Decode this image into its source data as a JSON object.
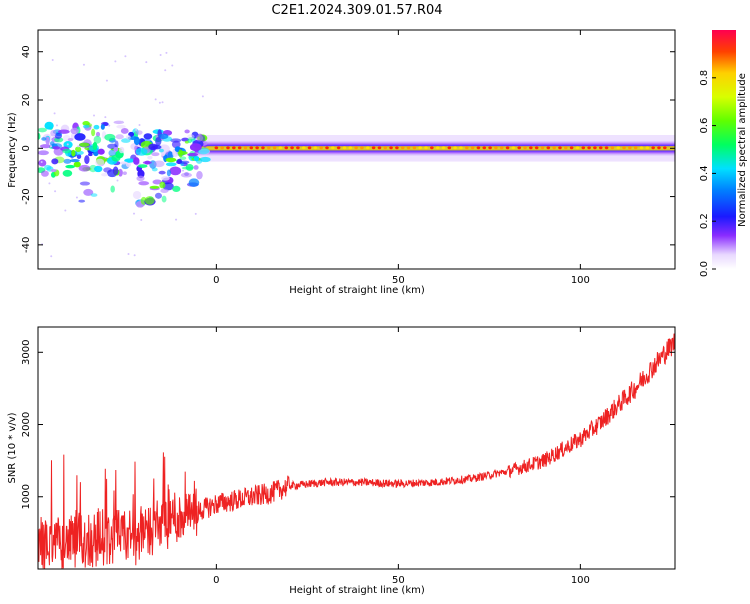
{
  "title": "C2E1.2024.309.01.57.R04",
  "chart_data": [
    {
      "type": "heatmap",
      "xlabel": "Height of straight line (km)",
      "ylabel": "Frequency (Hz)",
      "xlim": [
        -49,
        126
      ],
      "ylim": [
        -50,
        49
      ],
      "x_ticks": [
        "0",
        "50",
        "100"
      ],
      "y_ticks": [
        "40",
        "20",
        "0",
        "-20",
        "-40"
      ],
      "x_tick_values": [
        0,
        50,
        100
      ],
      "y_tick_values": [
        40,
        20,
        0,
        -20,
        -40
      ],
      "colorbar": {
        "label": "Normalized spectral amplitude",
        "range": [
          0,
          1
        ],
        "ticks": [
          "0.0",
          "0.2",
          "0.4",
          "0.6",
          "0.8"
        ],
        "tick_values": [
          0.0,
          0.2,
          0.4,
          0.6,
          0.8
        ]
      },
      "description_of_content": "Energy concentrated near 0 Hz; narrow band for heights > 0 km, scattered blobs down to about -30 Hz for heights < -10 km"
    },
    {
      "type": "line",
      "xlabel": "Height of straight line (km)",
      "ylabel": "SNR (10 * v/v)",
      "xlim": [
        -49,
        126
      ],
      "ylim": [
        0,
        3350
      ],
      "x_ticks": [
        "0",
        "50",
        "100"
      ],
      "y_ticks": [
        "1000",
        "2000",
        "3000"
      ],
      "x_tick_values": [
        0,
        50,
        100
      ],
      "y_tick_values": [
        1000,
        2000,
        3000
      ],
      "color": "#ee2222",
      "x": [
        -49,
        -40,
        -32,
        -25,
        -18,
        -12,
        -5,
        0,
        5,
        10,
        15,
        20,
        30,
        40,
        50,
        60,
        70,
        80,
        90,
        95,
        100,
        105,
        110,
        115,
        120,
        126
      ],
      "y": [
        350,
        380,
        420,
        450,
        550,
        700,
        800,
        900,
        950,
        1000,
        1050,
        1150,
        1200,
        1200,
        1180,
        1200,
        1250,
        1350,
        1500,
        1650,
        1800,
        2000,
        2250,
        2500,
        2800,
        3150
      ]
    }
  ]
}
